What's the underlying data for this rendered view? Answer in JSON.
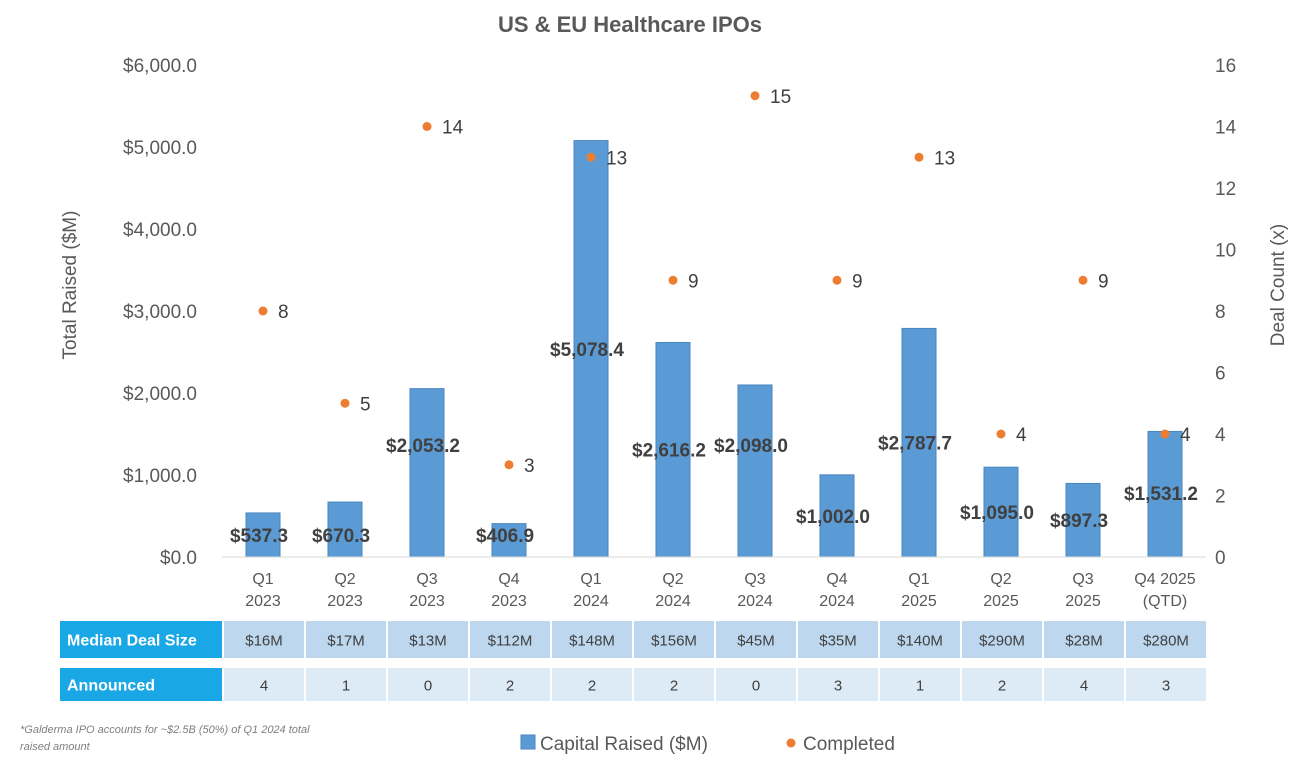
{
  "chart_data": {
    "type": "bar",
    "title": "US & EU Healthcare IPOs",
    "categories": [
      "Q1\n2023",
      "Q2\n2023",
      "Q3\n2023",
      "Q4\n2023",
      "Q1\n2024",
      "Q2\n2024",
      "Q3\n2024",
      "Q4\n2024",
      "Q1\n2025",
      "Q2\n2025",
      "Q3\n2025",
      "Q4 2025\n(QTD)"
    ],
    "ylabel": "Total Raised ($M)",
    "y2label": "Deal Count (x)",
    "ylim": [
      0,
      6000
    ],
    "y2lim": [
      0,
      16
    ],
    "yticks": [
      "$0.0",
      "$1,000.0",
      "$2,000.0",
      "$3,000.0",
      "$4,000.0",
      "$5,000.0",
      "$6,000.0"
    ],
    "y2ticks": [
      "0",
      "2",
      "4",
      "6",
      "8",
      "10",
      "12",
      "14",
      "16"
    ],
    "grid": false,
    "legend_position": "bottom",
    "series": [
      {
        "name": "Capital Raised ($M)",
        "kind": "bar",
        "axis": "left",
        "color": "#5b9bd5",
        "values": [
          537.3,
          670.3,
          2053.2,
          406.9,
          5078.4,
          2616.2,
          2098.0,
          1002.0,
          2787.7,
          1095.0,
          897.3,
          1531.2
        ],
        "labels": [
          "$537.3",
          "$670.3",
          "$2,053.2",
          "$406.9",
          "$5,078.4",
          "$2,616.2",
          "$2,098.0",
          "$1,002.0",
          "$2,787.7",
          "$1,095.0",
          "$897.3",
          "$1,531.2"
        ]
      },
      {
        "name": "Completed",
        "kind": "scatter",
        "axis": "right",
        "color": "#ed7d31",
        "values": [
          8,
          5,
          14,
          3,
          13,
          9,
          15,
          9,
          13,
          4,
          9,
          4
        ]
      }
    ],
    "table": {
      "rows": [
        {
          "label": "Median Deal Size",
          "values": [
            "$16M",
            "$17M",
            "$13M",
            "$112M",
            "$148M",
            "$156M",
            "$45M",
            "$35M",
            "$140M",
            "$290M",
            "$28M",
            "$280M"
          ]
        },
        {
          "label": "Announced",
          "values": [
            "4",
            "1",
            "0",
            "2",
            "2",
            "2",
            "0",
            "3",
            "1",
            "2",
            "4",
            "3"
          ]
        }
      ]
    },
    "footnote": "*Galderma IPO accounts for ~$2.5B (50%) of Q1 2024 total raised amount"
  }
}
